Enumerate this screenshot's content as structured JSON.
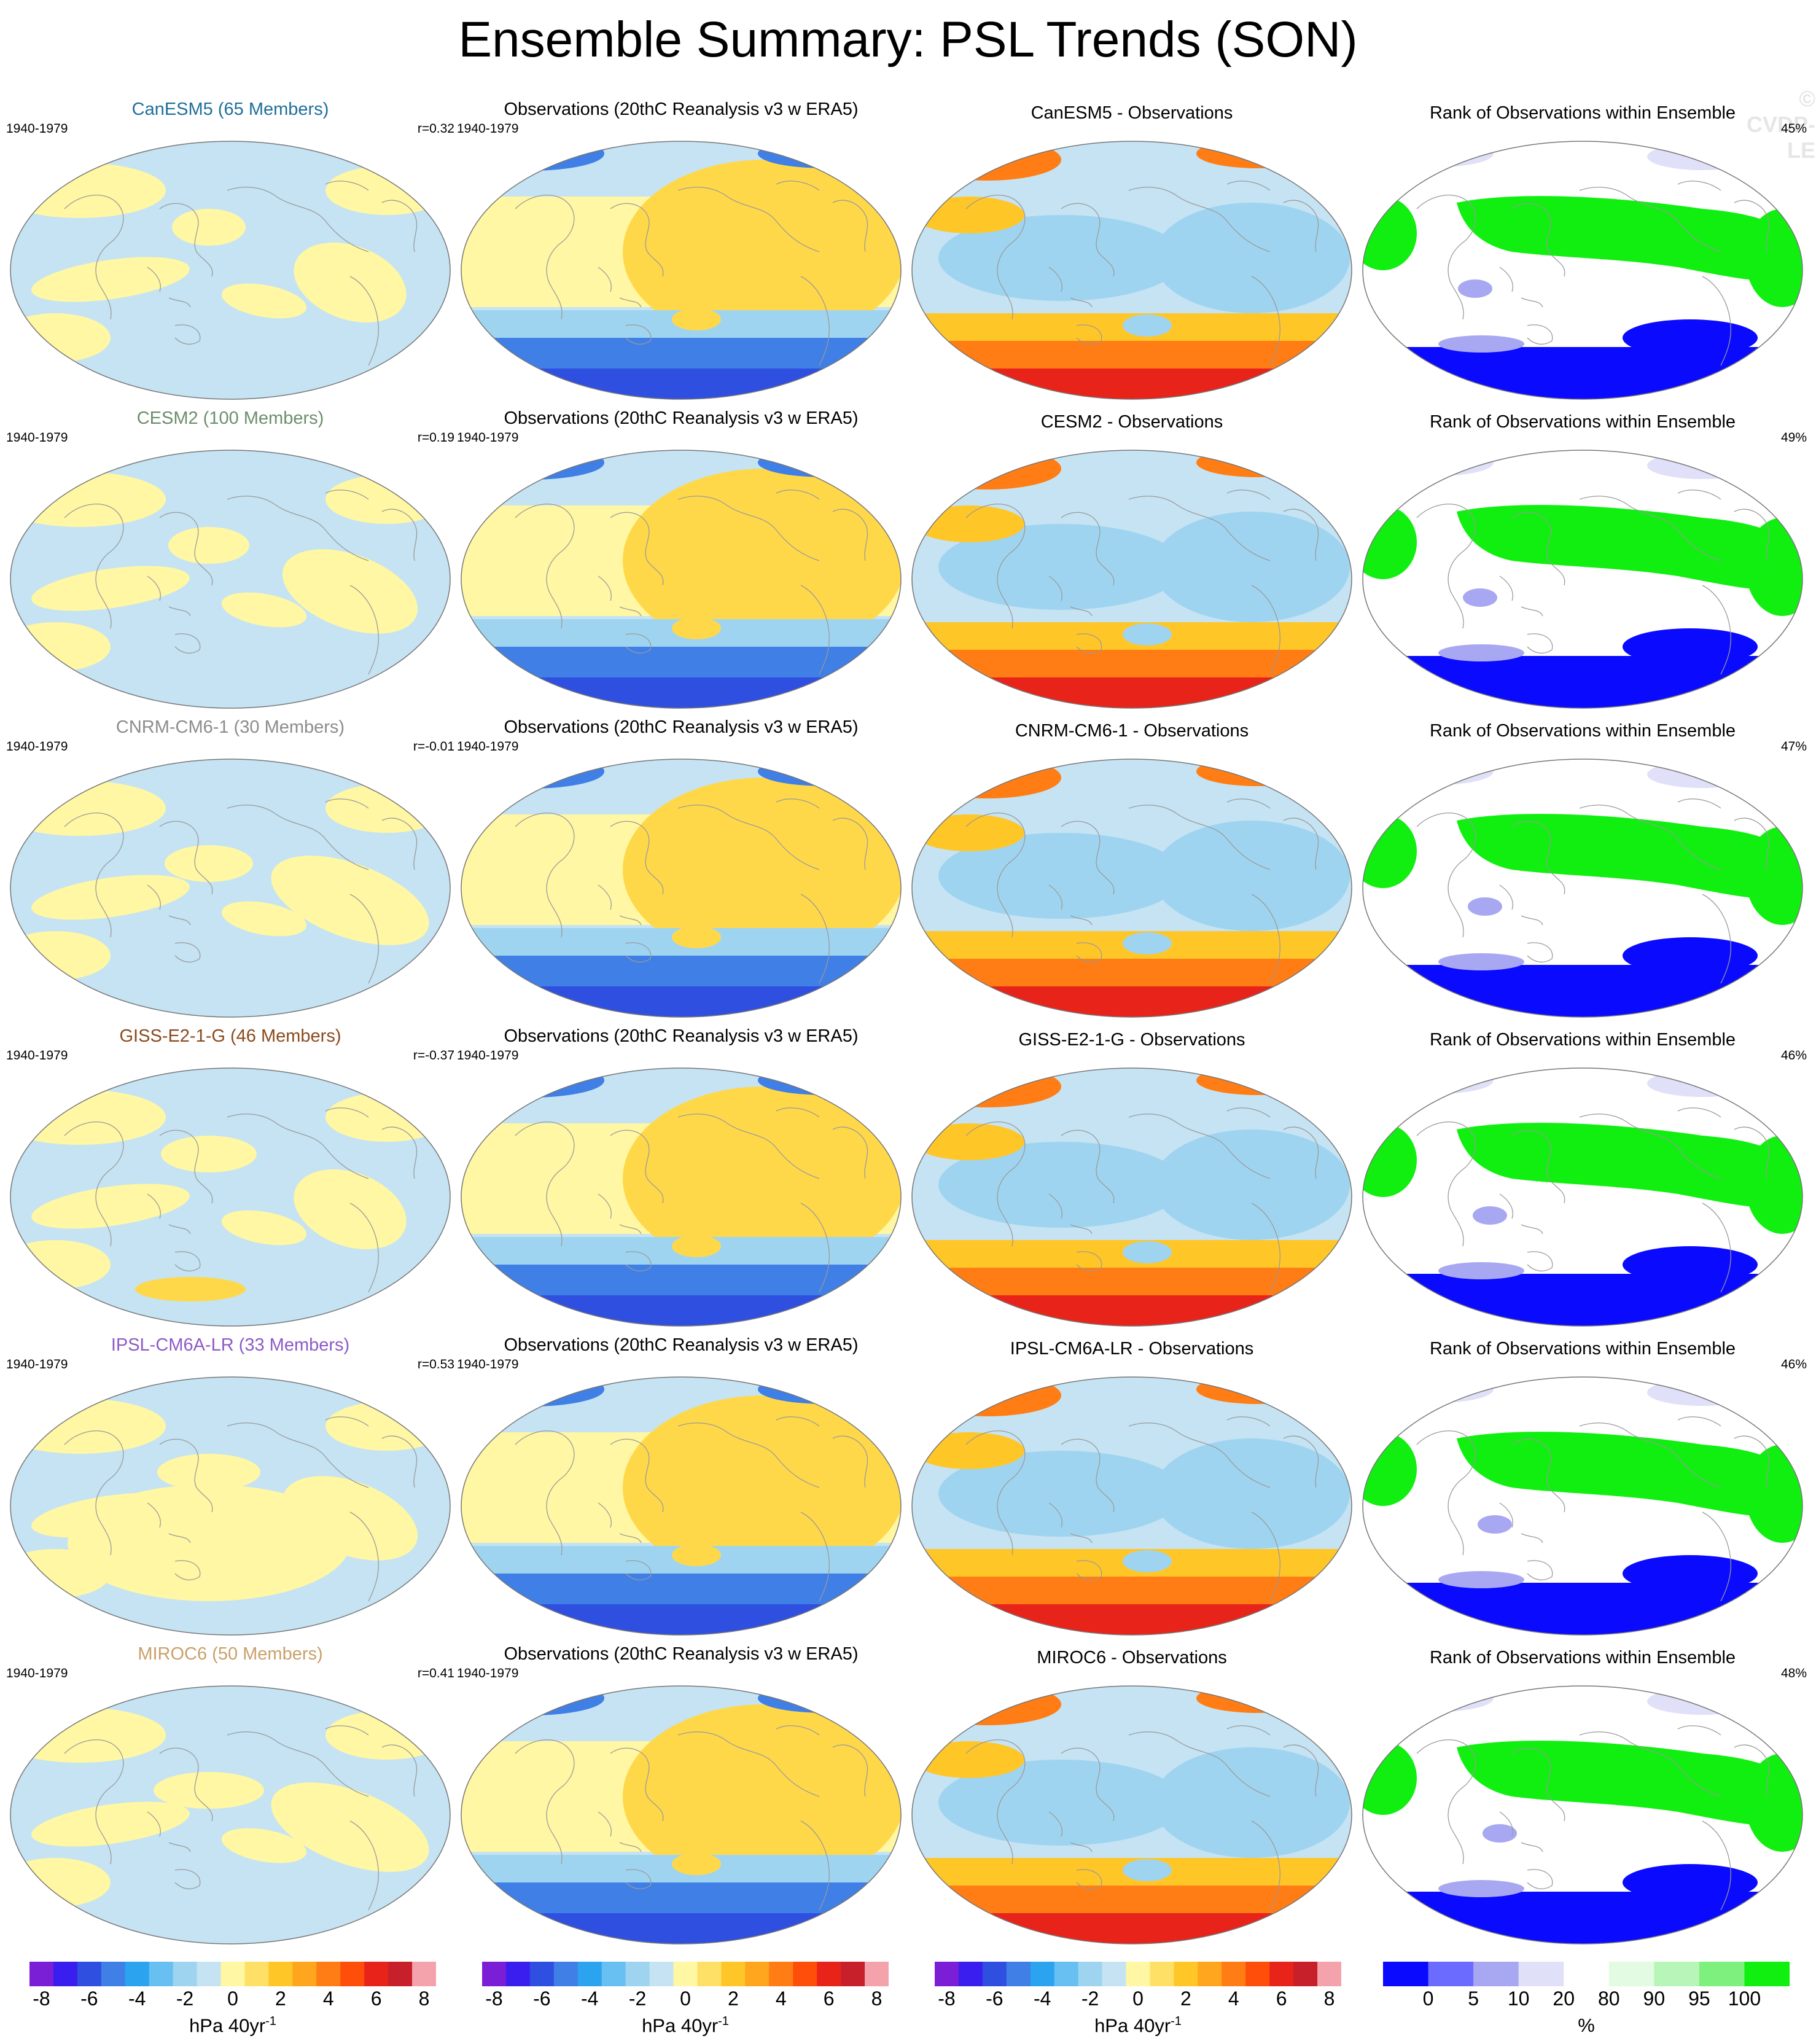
{
  "title": "Ensemble Summary: PSL Trends (SON)",
  "watermark": "© CVDP-LE",
  "period": "1940-1979",
  "obs_title": "Observations (20thC Reanalysis v3 w ERA5)",
  "rank_title": "Rank of Observations within Ensemble",
  "rows": [
    {
      "model_title": "CanESM5 (65 Members)",
      "model_color": "#1f6f9a",
      "r": "r=0.32",
      "diff_title": "CanESM5 - Observations",
      "rank_pct": "45%"
    },
    {
      "model_title": "CESM2 (100 Members)",
      "model_color": "#6b8e6b",
      "r": "r=0.19",
      "diff_title": "CESM2 - Observations",
      "rank_pct": "49%"
    },
    {
      "model_title": "CNRM-CM6-1 (30 Members)",
      "model_color": "#8c8c8c",
      "r": "r=-0.01",
      "diff_title": "CNRM-CM6-1 - Observations",
      "rank_pct": "47%"
    },
    {
      "model_title": "GISS-E2-1-G (46 Members)",
      "model_color": "#8b4a1c",
      "r": "r=-0.37",
      "diff_title": "GISS-E2-1-G - Observations",
      "rank_pct": "46%"
    },
    {
      "model_title": "IPSL-CM6A-LR (33 Members)",
      "model_color": "#8d5ac7",
      "r": "r=0.53",
      "diff_title": "IPSL-CM6A-LR - Observations",
      "rank_pct": "46%"
    },
    {
      "model_title": "MIROC6 (50 Members)",
      "model_color": "#c9a06b",
      "r": "r=0.41",
      "diff_title": "MIROC6 - Observations",
      "rank_pct": "48%"
    }
  ],
  "trend_colorbar": {
    "colors": [
      "#7a1fd6",
      "#3a1ef0",
      "#2f4fe0",
      "#3f7fe6",
      "#2ba3ee",
      "#67bff2",
      "#9fd4f0",
      "#c5e3f3",
      "#fff7a3",
      "#ffe066",
      "#ffc628",
      "#ffa51e",
      "#ff7d14",
      "#ff4d0a",
      "#e8231a",
      "#c8202a",
      "#f4a3ad"
    ],
    "ticks": [
      "-8",
      "-6",
      "-4",
      "-2",
      "0",
      "2",
      "4",
      "6",
      "8"
    ],
    "units": "hPa 40yr",
    "units_sup": "-1"
  },
  "rank_colorbar": {
    "colors": [
      "#0a0aff",
      "#6b6bff",
      "#a8a8f2",
      "#e0e0f8",
      "#ffffff",
      "#e2fbe2",
      "#b8f5b8",
      "#7df07d",
      "#10ef10"
    ],
    "ticks": [
      "0",
      "5",
      "10",
      "20",
      "80",
      "90",
      "95",
      "100"
    ],
    "units": "%"
  },
  "palette": {
    "model_bg": "#c5e3f3",
    "model_fg": "#fff7a3",
    "obs_ocean": "#c5e3f3",
    "obs_yellow": "#fff7a3",
    "obs_gold": "#ffd84a",
    "obs_lblue": "#9fd4f0",
    "obs_blue": "#3f7fe6",
    "obs_dblue": "#2f4fe0",
    "diff_red": "#e8231a",
    "diff_orange": "#ff7d14",
    "diff_gold": "#ffc628",
    "rank_green": "#10ef10",
    "rank_blue": "#0a0aff",
    "rank_lblue": "#a8a8f2",
    "rank_pale": "#e0e0f8",
    "coast": "#9a9a9a"
  }
}
